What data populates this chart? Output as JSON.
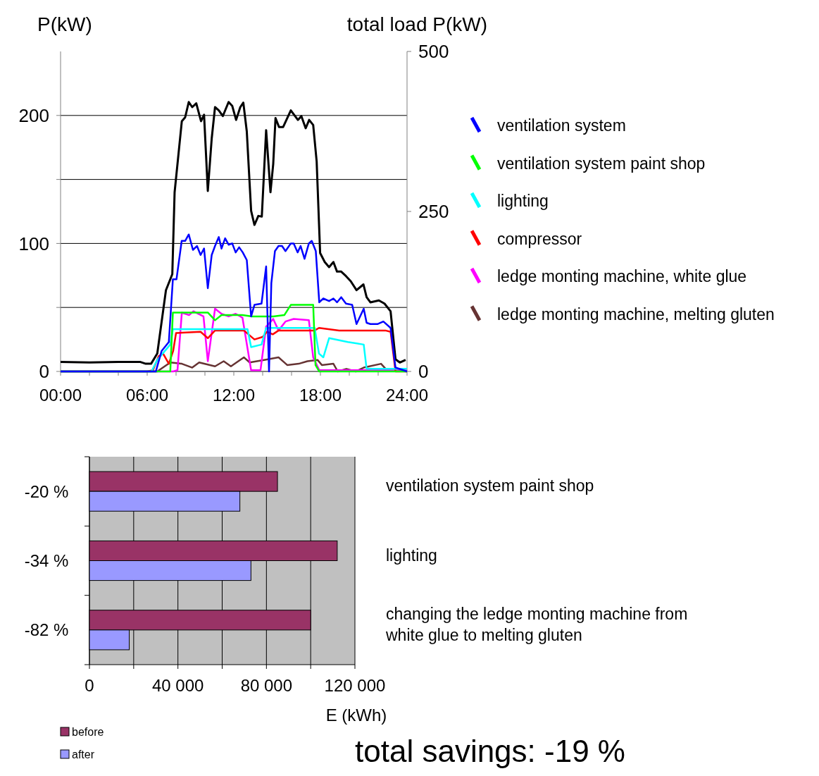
{
  "chart_data": [
    {
      "type": "line",
      "ylabel": "P(kW)",
      "y2label": "total load P(kW)",
      "xlim": [
        0,
        24
      ],
      "xticks": [
        {
          "value": 0,
          "label": "00:00"
        },
        {
          "value": 2,
          "label": null
        },
        {
          "value": 4,
          "label": null
        },
        {
          "value": 6,
          "label": "06:00"
        },
        {
          "value": 8,
          "label": null
        },
        {
          "value": 10,
          "label": null
        },
        {
          "value": 12,
          "label": "12:00"
        },
        {
          "value": 14,
          "label": null
        },
        {
          "value": 16,
          "label": null
        },
        {
          "value": 18,
          "label": "18:00"
        },
        {
          "value": 20,
          "label": null
        },
        {
          "value": 22,
          "label": null
        },
        {
          "value": 24,
          "label": "24:00"
        }
      ],
      "ylim": [
        0,
        250
      ],
      "yticks": [
        0,
        {
          "value": 50,
          "label": null
        },
        100,
        {
          "value": 150,
          "label": null
        },
        200
      ],
      "y2lim": [
        0,
        500
      ],
      "y2ticks": [
        0,
        250,
        500
      ],
      "grid": "y",
      "legend": "right",
      "series": [
        {
          "name": "ventilation system",
          "color": "#0000ff",
          "x": [
            0,
            6.6,
            7.0,
            7.5,
            7.78,
            8.03,
            8.39,
            8.63,
            8.88,
            9.17,
            9.45,
            9.7,
            9.94,
            10.2,
            10.47,
            10.7,
            10.96,
            11.15,
            11.4,
            11.64,
            11.89,
            12.13,
            12.37,
            12.62,
            12.9,
            13.2,
            13.43,
            13.92,
            14.24,
            14.44,
            14.6,
            14.85,
            15.1,
            15.34,
            15.58,
            15.95,
            16.15,
            16.42,
            16.63,
            16.9,
            17.2,
            17.4,
            17.68,
            17.92,
            18.2,
            18.6,
            18.9,
            19.15,
            19.44,
            19.77,
            20.2,
            20.5,
            21.0,
            21.2,
            21.46,
            21.95,
            22.36,
            22.86,
            23.2,
            24
          ],
          "values": [
            0,
            0,
            16,
            23,
            72,
            72,
            102,
            102,
            107,
            95,
            98,
            91,
            96,
            65,
            91,
            98,
            105,
            96,
            104,
            99,
            100,
            93,
            97,
            93,
            87,
            43,
            52,
            53,
            82,
            0,
            69,
            94,
            98,
            98,
            94,
            100,
            100,
            93,
            98,
            88,
            100,
            102,
            94,
            54,
            57,
            55,
            57,
            54,
            58,
            53,
            52,
            37,
            49,
            38,
            37,
            37,
            39,
            34,
            3,
            0
          ]
        },
        {
          "name": "ventilation system paint shop",
          "color": "#00ff00",
          "x": [
            0,
            7.6,
            7.78,
            10.2,
            10.7,
            11.15,
            12.6,
            13.27,
            14.73,
            15.5,
            15.95,
            17.5,
            17.66,
            17.92,
            24
          ],
          "values": [
            0,
            0,
            46,
            46,
            40,
            44,
            44,
            43,
            43,
            44,
            52,
            52,
            5,
            0,
            0
          ]
        },
        {
          "name": "lighting",
          "color": "#00ffff",
          "x": [
            0,
            6.3,
            6.7,
            7.6,
            7.78,
            12.95,
            13.2,
            13.92,
            14.24,
            17.6,
            17.9,
            18.2,
            18.6,
            19.9,
            21.0,
            21.2,
            24
          ],
          "values": [
            0,
            0,
            9,
            21,
            33,
            33,
            19,
            21,
            34,
            34,
            14,
            11,
            26,
            23,
            21,
            2,
            2
          ]
        },
        {
          "name": "compressor",
          "color": "#ff0000",
          "x": [
            0,
            6.0,
            6.4,
            6.8,
            7.1,
            7.5,
            7.8,
            8.0,
            9.7,
            10.2,
            10.7,
            12.7,
            13.43,
            14.0,
            14.3,
            14.7,
            15.1,
            17.6,
            17.9,
            19.3,
            22.5,
            22.86,
            23.2,
            24
          ],
          "values": [
            0,
            0,
            1,
            12,
            14,
            6,
            16,
            30,
            31,
            26,
            32,
            32,
            25,
            27,
            31,
            29,
            32,
            32,
            34,
            32,
            32,
            31,
            0,
            0
          ]
        },
        {
          "name": "ledge monting machine, white glue",
          "color": "#ff00ff",
          "x": [
            0,
            7.8,
            8.1,
            8.4,
            8.9,
            9.2,
            9.9,
            10.2,
            10.7,
            11.15,
            11.64,
            12.13,
            12.6,
            13.2,
            13.85,
            14.24,
            14.73,
            15.1,
            15.58,
            16.15,
            17.2,
            17.5,
            17.92,
            24
          ],
          "values": [
            0,
            0,
            1,
            46,
            44,
            47,
            43,
            8,
            49,
            45,
            43,
            45,
            42,
            1,
            1,
            35,
            41,
            32,
            39,
            41,
            40,
            11,
            1,
            1
          ]
        },
        {
          "name": "ledge monting machine, melting gluten",
          "color": "#663333",
          "x": [
            0,
            6.7,
            7.6,
            8.4,
            9.12,
            9.6,
            10.7,
            11.3,
            11.8,
            12.7,
            13.1,
            14.1,
            15.1,
            15.7,
            16.5,
            17.1,
            17.8,
            18.1,
            18.9,
            19.2,
            19.8,
            20.45,
            21.0,
            22.2,
            22.6,
            24
          ],
          "values": [
            0,
            0,
            7,
            6,
            3,
            7,
            4,
            8,
            4,
            11,
            7,
            9,
            11,
            5,
            6,
            8,
            9,
            5,
            6,
            0,
            2,
            0,
            3,
            6,
            1,
            0
          ]
        },
        {
          "color": "#000000",
          "axis": "y2",
          "x": [
            0,
            2,
            4,
            5.5,
            5.9,
            6.27,
            6.7,
            7.3,
            7.74,
            7.9,
            8.4,
            8.63,
            8.88,
            9.12,
            9.4,
            9.73,
            9.94,
            10.2,
            10.47,
            10.7,
            10.96,
            11.24,
            11.64,
            11.89,
            12.16,
            12.45,
            12.66,
            12.9,
            13.2,
            13.43,
            13.7,
            13.94,
            14.24,
            14.54,
            14.73,
            14.89,
            15.13,
            15.42,
            15.95,
            16.44,
            16.68,
            16.98,
            17.22,
            17.5,
            17.74,
            17.98,
            18.3,
            18.6,
            18.9,
            19.15,
            19.44,
            19.77,
            20.1,
            20.5,
            20.98,
            21.2,
            21.46,
            22.05,
            22.44,
            22.86,
            23.2,
            23.5,
            23.9
          ],
          "values": [
            15,
            14,
            15,
            15,
            12,
            12,
            28,
            127,
            152,
            280,
            391,
            397,
            421,
            413,
            419,
            391,
            401,
            282,
            364,
            413,
            408,
            399,
            421,
            415,
            393,
            413,
            420,
            375,
            251,
            229,
            243,
            242,
            377,
            280,
            324,
            396,
            382,
            382,
            408,
            393,
            399,
            380,
            393,
            385,
            328,
            185,
            171,
            163,
            171,
            156,
            156,
            149,
            141,
            127,
            136,
            116,
            108,
            111,
            106,
            94,
            19,
            14,
            18
          ]
        }
      ]
    },
    {
      "type": "bar",
      "orientation": "horizontal",
      "categories": [
        "-20 %",
        "-34 %",
        "-82 %"
      ],
      "series": [
        {
          "name": "before",
          "color": "#993366",
          "values": [
            85000,
            112000,
            100000
          ]
        },
        {
          "name": "after",
          "color": "#9999ff",
          "values": [
            68000,
            73000,
            18000
          ]
        }
      ],
      "xlim": [
        0,
        120000
      ],
      "xticks": [
        0,
        {
          "value": 20000,
          "label": null
        },
        {
          "value": 40000,
          "label": "40 000"
        },
        {
          "value": 60000,
          "label": null
        },
        {
          "value": 80000,
          "label": "80 000"
        },
        {
          "value": 100000,
          "label": null
        },
        {
          "value": 120000,
          "label": "120 000"
        }
      ],
      "xlabel": "E (kWh)",
      "grid": "x",
      "legend": "bottom left",
      "annotations": [
        "ventilation system paint shop",
        "lighting",
        "changing the ledge monting machine from white glue to melting gluten",
        "total savings: -19 %"
      ]
    }
  ]
}
